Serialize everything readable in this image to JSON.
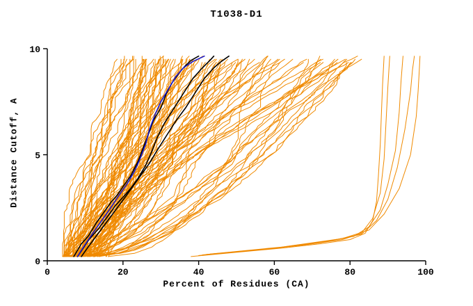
{
  "chart_data": {
    "type": "line",
    "title": "T1038-D1",
    "xlabel": "Percent of Residues (CA)",
    "ylabel": "Distance Cutoff, A",
    "xlim": [
      0,
      100
    ],
    "ylim": [
      0,
      10
    ],
    "x_ticks": [
      0,
      20,
      40,
      60,
      80,
      100
    ],
    "y_ticks": [
      0,
      5,
      10
    ],
    "grid": false,
    "legend": "none",
    "colors": {
      "ensemble": "#F08A00",
      "highlight": "#000000",
      "special": "#1A1ACC",
      "axis": "#000000",
      "background": "#ffffff"
    },
    "ensemble": {
      "description": "dense band of ~100 orange model curves rising from lower-left to upper-middle",
      "count": 100,
      "seed": 7,
      "y_start": 0.2,
      "y_end_min": 9.45,
      "y_end_max": 9.7,
      "y_step": 0.15,
      "x0_min": 4,
      "x0_max": 16,
      "x0_skew": 2,
      "rise_min": 14,
      "xtop_max": 83,
      "exp_min": 0.35,
      "exp_span": 1.1,
      "noise_step": 0.7,
      "noise_clamp": 1.6
    },
    "outlier_series": [
      {
        "name": "right-outlier-1",
        "color": "#F08A00",
        "width": 1,
        "points": [
          [
            38,
            0.2
          ],
          [
            50,
            0.4
          ],
          [
            62,
            0.6
          ],
          [
            72,
            0.8
          ],
          [
            80,
            1.0
          ],
          [
            84,
            1.3
          ],
          [
            86,
            1.9
          ],
          [
            87,
            2.8
          ],
          [
            87.5,
            4.0
          ],
          [
            88,
            5.5
          ],
          [
            88.3,
            7.0
          ],
          [
            88.6,
            8.3
          ],
          [
            89,
            9.65
          ]
        ]
      },
      {
        "name": "right-outlier-2",
        "color": "#F08A00",
        "width": 1,
        "points": [
          [
            40,
            0.25
          ],
          [
            55,
            0.5
          ],
          [
            68,
            0.75
          ],
          [
            78,
            1.0
          ],
          [
            83,
            1.3
          ],
          [
            86,
            2.0
          ],
          [
            88,
            3.2
          ],
          [
            89,
            4.8
          ],
          [
            89.5,
            6.5
          ],
          [
            90,
            8.2
          ],
          [
            90.5,
            9.65
          ]
        ]
      },
      {
        "name": "right-outlier-3",
        "color": "#F08A00",
        "width": 1,
        "points": [
          [
            42,
            0.3
          ],
          [
            58,
            0.55
          ],
          [
            72,
            0.85
          ],
          [
            81,
            1.15
          ],
          [
            85,
            1.6
          ],
          [
            88,
            2.4
          ],
          [
            90,
            3.6
          ],
          [
            92,
            5.2
          ],
          [
            93,
            7.0
          ],
          [
            93.5,
            8.5
          ],
          [
            94,
            9.65
          ]
        ]
      },
      {
        "name": "right-outlier-4",
        "color": "#F08A00",
        "width": 1,
        "points": [
          [
            41,
            0.28
          ],
          [
            60,
            0.6
          ],
          [
            75,
            0.95
          ],
          [
            83,
            1.25
          ],
          [
            87,
            1.9
          ],
          [
            90,
            2.9
          ],
          [
            92.5,
            4.4
          ],
          [
            94.5,
            6.2
          ],
          [
            96,
            8.0
          ],
          [
            96.5,
            9.0
          ],
          [
            97,
            9.65
          ]
        ]
      },
      {
        "name": "right-outlier-5",
        "color": "#F08A00",
        "width": 1,
        "points": [
          [
            43,
            0.32
          ],
          [
            62,
            0.65
          ],
          [
            78,
            1.05
          ],
          [
            85,
            1.45
          ],
          [
            89,
            2.2
          ],
          [
            93,
            3.4
          ],
          [
            96,
            5.0
          ],
          [
            97.5,
            6.8
          ],
          [
            98,
            8.0
          ],
          [
            98.3,
            9.0
          ],
          [
            98.5,
            9.65
          ]
        ]
      }
    ],
    "series": [
      {
        "name": "highlight-black-1",
        "color": "#000000",
        "width": 1.6,
        "points": [
          [
            7,
            0.2
          ],
          [
            8,
            0.5
          ],
          [
            9,
            0.8
          ],
          [
            11,
            1.2
          ],
          [
            13,
            1.8
          ],
          [
            15,
            2.3
          ],
          [
            17,
            2.8
          ],
          [
            18.5,
            3.1
          ],
          [
            20,
            3.5
          ],
          [
            22,
            4.0
          ],
          [
            24,
            4.7
          ],
          [
            25.5,
            5.4
          ],
          [
            27,
            6.1
          ],
          [
            28,
            6.6
          ],
          [
            30,
            7.2
          ],
          [
            31.5,
            7.9
          ],
          [
            33,
            8.4
          ],
          [
            35,
            8.9
          ],
          [
            36.5,
            9.2
          ],
          [
            38,
            9.45
          ],
          [
            40,
            9.65
          ]
        ]
      },
      {
        "name": "highlight-black-2",
        "color": "#000000",
        "width": 1.6,
        "points": [
          [
            8,
            0.2
          ],
          [
            9.5,
            0.6
          ],
          [
            11,
            1.0
          ],
          [
            13.5,
            1.5
          ],
          [
            16,
            2.1
          ],
          [
            18,
            2.6
          ],
          [
            20,
            3.0
          ],
          [
            22,
            3.4
          ],
          [
            24,
            3.9
          ],
          [
            26,
            4.5
          ],
          [
            27.5,
            5.1
          ],
          [
            29,
            5.8
          ],
          [
            31,
            6.5
          ],
          [
            33.5,
            7.2
          ],
          [
            36,
            7.9
          ],
          [
            38.5,
            8.6
          ],
          [
            41,
            9.1
          ],
          [
            43,
            9.45
          ],
          [
            44,
            9.65
          ]
        ]
      },
      {
        "name": "highlight-black-3",
        "color": "#000000",
        "width": 1.6,
        "points": [
          [
            9,
            0.2
          ],
          [
            11,
            0.7
          ],
          [
            13.5,
            1.3
          ],
          [
            16,
            1.9
          ],
          [
            18.5,
            2.5
          ],
          [
            21,
            3.1
          ],
          [
            23,
            3.6
          ],
          [
            25,
            4.1
          ],
          [
            27,
            4.6
          ],
          [
            29,
            5.2
          ],
          [
            31.5,
            5.9
          ],
          [
            34,
            6.6
          ],
          [
            36.5,
            7.2
          ],
          [
            39,
            7.9
          ],
          [
            41.5,
            8.6
          ],
          [
            44,
            9.1
          ],
          [
            46,
            9.4
          ],
          [
            48,
            9.65
          ]
        ]
      },
      {
        "name": "highlight-blue",
        "color": "#1A1ACC",
        "width": 1.6,
        "points": [
          [
            8,
            0.2
          ],
          [
            9,
            0.5
          ],
          [
            10.5,
            0.9
          ],
          [
            12,
            1.3
          ],
          [
            14,
            1.8
          ],
          [
            16,
            2.3
          ],
          [
            17.5,
            2.7
          ],
          [
            19,
            3.1
          ],
          [
            21,
            3.6
          ],
          [
            23,
            4.2
          ],
          [
            24.5,
            4.8
          ],
          [
            26,
            5.5
          ],
          [
            27,
            6.2
          ],
          [
            28.5,
            6.9
          ],
          [
            30,
            7.5
          ],
          [
            32,
            8.1
          ],
          [
            34,
            8.7
          ],
          [
            36,
            9.1
          ],
          [
            38.5,
            9.4
          ],
          [
            41.5,
            9.65
          ]
        ]
      }
    ]
  }
}
